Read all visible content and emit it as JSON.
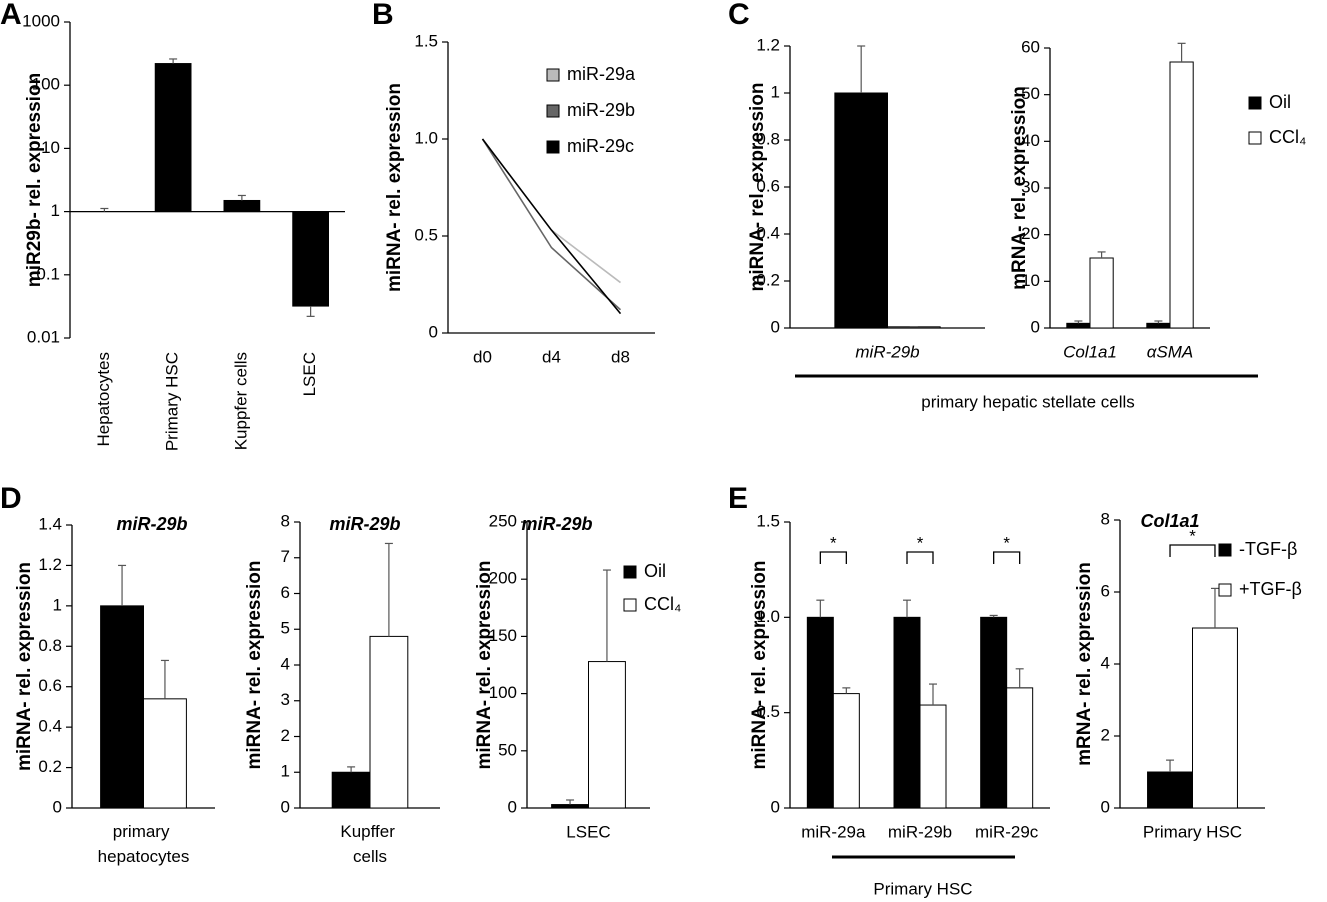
{
  "chart_data": [
    {
      "type": "bar",
      "panel_label": "A",
      "ylabel": "miR29b- rel. expression",
      "log_scale": true,
      "baseline": 1,
      "categories": [
        "Hepatocytes",
        "Primary HSC",
        "Kuppfer cells",
        "LSEC"
      ],
      "values": [
        1,
        220,
        1.5,
        0.032
      ],
      "errors": [
        0.12,
        40,
        0.3,
        0.01
      ],
      "color": "#000000",
      "ylim": [
        0.01,
        1000
      ],
      "yticks": [
        0.01,
        0.1,
        1,
        10,
        100,
        1000
      ]
    },
    {
      "type": "line",
      "panel_label": "B",
      "ylabel": "miRNA- rel. expression",
      "categories": [
        "d0",
        "d4",
        "d8"
      ],
      "series": [
        {
          "name": "miR-29a",
          "color": "#bbbbbb",
          "values": [
            1.0,
            0.53,
            0.26
          ]
        },
        {
          "name": "miR-29b",
          "color": "#666666",
          "values": [
            1.0,
            0.44,
            0.12
          ]
        },
        {
          "name": "miR-29c",
          "color": "#000000",
          "values": [
            1.0,
            0.53,
            0.1
          ]
        }
      ],
      "ylim": [
        0,
        1.5
      ],
      "yticks": [
        0,
        0.5,
        {
          "value": 1,
          "label": "1.0"
        },
        1.5
      ]
    },
    {
      "type": "bar",
      "panel_label": "C",
      "ylabel": "miRNA- rel. expression",
      "categories": [
        "miR-29b"
      ],
      "series": [
        {
          "color": "#000000",
          "values": [
            1.0
          ],
          "errors": [
            0.2
          ]
        },
        {
          "color": "#ffffff",
          "values": [
            0.005
          ],
          "errors": [
            0
          ]
        }
      ],
      "ylim": [
        0,
        1.2
      ],
      "yticks": [
        0,
        0.2,
        0.4,
        0.6,
        0.8,
        1,
        1.2
      ]
    },
    {
      "type": "bar",
      "ylabel": "mRNA- rel. expression",
      "group_label": "primary hepatic stellate cells",
      "categories": [
        "Col1a1",
        "αSMA"
      ],
      "series": [
        {
          "name": "Oil",
          "color": "#000000",
          "values": [
            1,
            1
          ],
          "errors": [
            0.5,
            0.5
          ]
        },
        {
          "name": "CCl₄",
          "color": "#ffffff",
          "values": [
            15,
            57
          ],
          "errors": [
            1.3,
            4
          ]
        }
      ],
      "ylim": [
        0,
        60
      ],
      "yticks": [
        0,
        10,
        20,
        30,
        40,
        50,
        60
      ]
    },
    {
      "type": "bar",
      "panel_label": "D",
      "title": "miR-29b",
      "ylabel": "miRNA- rel. expression",
      "categories": [
        "primary hepatocytes"
      ],
      "series": [
        {
          "color": "#000000",
          "values": [
            1
          ],
          "errors": [
            0.2
          ]
        },
        {
          "color": "#ffffff",
          "values": [
            0.54
          ],
          "errors": [
            0.19
          ]
        }
      ],
      "ylim": [
        0,
        1.4
      ],
      "yticks": [
        0,
        0.2,
        0.4,
        0.6,
        0.8,
        1,
        1.2,
        1.4
      ]
    },
    {
      "type": "bar",
      "title": "miR-29b",
      "ylabel": "miRNA- rel. expression",
      "categories": [
        "Kupffer cells"
      ],
      "series": [
        {
          "color": "#000000",
          "values": [
            1
          ],
          "errors": [
            0.15
          ]
        },
        {
          "color": "#ffffff",
          "values": [
            4.8
          ],
          "errors": [
            2.6
          ]
        }
      ],
      "ylim": [
        0,
        8
      ],
      "yticks": [
        0,
        1,
        2,
        3,
        4,
        5,
        6,
        7,
        8
      ]
    },
    {
      "type": "bar",
      "title": "miR-29b",
      "ylabel": "miRNA- rel. expression",
      "categories": [
        "LSEC"
      ],
      "series": [
        {
          "name": "Oil",
          "color": "#000000",
          "values": [
            3
          ],
          "errors": [
            4
          ]
        },
        {
          "name": "CCl₄",
          "color": "#ffffff",
          "values": [
            128
          ],
          "errors": [
            80
          ]
        }
      ],
      "ylim": [
        0,
        250
      ],
      "yticks": [
        0,
        50,
        100,
        150,
        200,
        250
      ]
    },
    {
      "type": "bar",
      "panel_label": "E",
      "ylabel": "miRNA- rel. expression",
      "group_label": "Primary HSC",
      "categories": [
        "miR-29a",
        "miR-29b",
        "miR-29c"
      ],
      "significance": [
        "*",
        "*",
        "*"
      ],
      "series": [
        {
          "color": "#000000",
          "values": [
            1,
            1,
            1
          ],
          "errors": [
            0.09,
            0.09,
            0.01
          ]
        },
        {
          "color": "#ffffff",
          "values": [
            0.6,
            0.54,
            0.63
          ],
          "errors": [
            0.03,
            0.11,
            0.1
          ]
        }
      ],
      "ylim": [
        0,
        1.5
      ],
      "yticks": [
        0,
        0.5,
        {
          "value": 1,
          "label": "1.0"
        },
        1.5
      ]
    },
    {
      "type": "bar",
      "title": "Col1a1",
      "ylabel": "mRNA- rel. expression",
      "categories": [
        "Primary HSC"
      ],
      "significance": [
        "*"
      ],
      "series": [
        {
          "name": "-TGF-β",
          "color": "#000000",
          "values": [
            1
          ],
          "errors": [
            0.33
          ]
        },
        {
          "name": "+TGF-β",
          "color": "#ffffff",
          "values": [
            5
          ],
          "errors": [
            1.1
          ]
        }
      ],
      "ylim": [
        0,
        8
      ],
      "yticks": [
        0,
        2,
        4,
        6,
        8
      ]
    }
  ]
}
